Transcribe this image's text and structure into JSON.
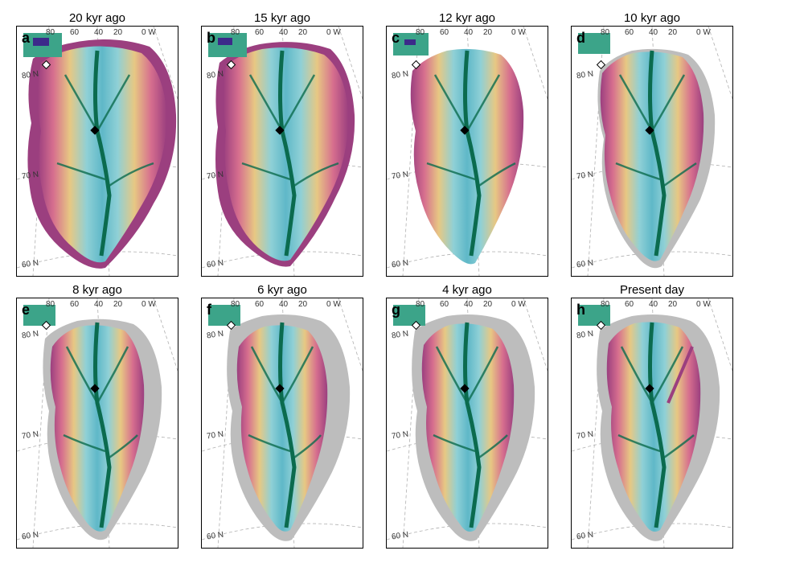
{
  "panels": [
    {
      "letter": "a",
      "title": "20 kyr ago"
    },
    {
      "letter": "b",
      "title": "15 kyr ago"
    },
    {
      "letter": "c",
      "title": "12 kyr ago"
    },
    {
      "letter": "d",
      "title": "10 kyr ago"
    },
    {
      "letter": "e",
      "title": "8 kyr ago"
    },
    {
      "letter": "f",
      "title": "6 kyr ago"
    },
    {
      "letter": "g",
      "title": "4 kyr ago"
    },
    {
      "letter": "h",
      "title": "Present day"
    }
  ],
  "lon_labels": [
    "80",
    "60",
    "40",
    "20",
    "0 W"
  ],
  "lat_labels": [
    "80 N",
    "70 N",
    "60 N"
  ],
  "colors": {
    "ice_divide": "#0b6b4e",
    "fast": "#5fb8c8",
    "medium": "#e7c883",
    "slow": "#b34d87",
    "outer": "#9b3f7f",
    "exposed": "#bdbdbd",
    "grid": "#b0b0b0"
  }
}
